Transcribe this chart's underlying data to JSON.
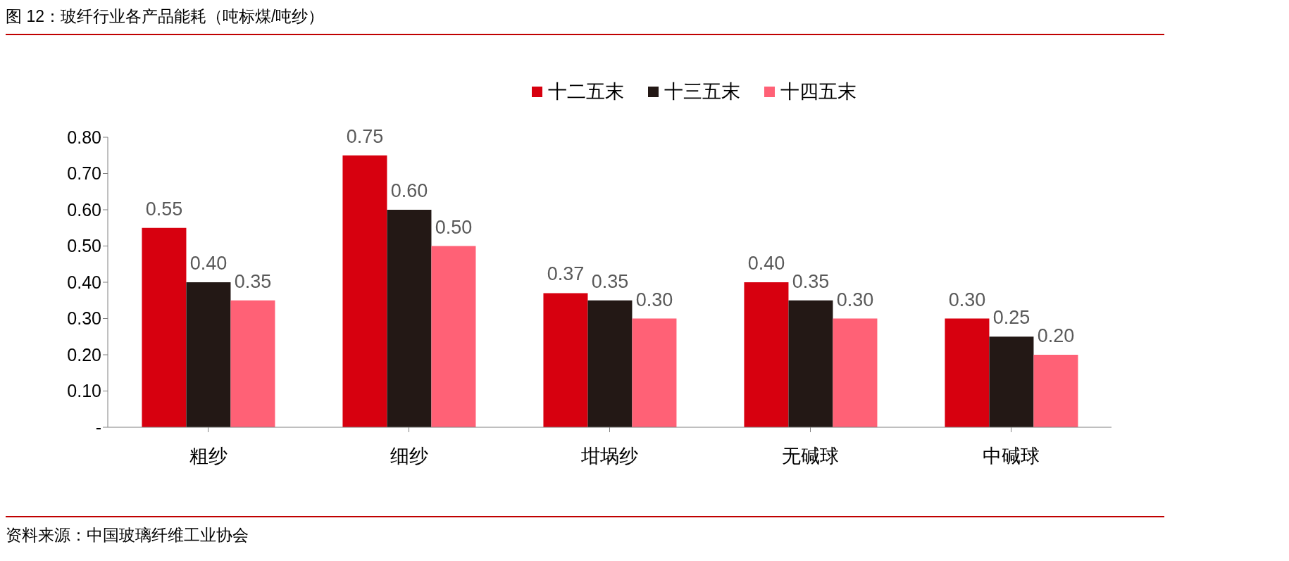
{
  "chart_data": {
    "type": "bar",
    "title": "图 12：玻纤行业各产品能耗（吨标煤/吨纱）",
    "categories": [
      "粗纱",
      "细纱",
      "坩埚纱",
      "无碱球",
      "中碱球"
    ],
    "series": [
      {
        "name": "十二五末",
        "color": "#d7000f",
        "values": [
          0.55,
          0.75,
          0.37,
          0.4,
          0.3
        ],
        "value_labels": [
          "0.55",
          "0.75",
          "0.37",
          "0.40",
          "0.30"
        ]
      },
      {
        "name": "十三五末",
        "color": "#231815",
        "values": [
          0.4,
          0.6,
          0.35,
          0.35,
          0.25
        ],
        "value_labels": [
          "0.40",
          "0.60",
          "0.35",
          "0.35",
          "0.25"
        ]
      },
      {
        "name": "十四五末",
        "color": "#ff6176",
        "values": [
          0.35,
          0.5,
          0.3,
          0.3,
          0.2
        ],
        "value_labels": [
          "0.35",
          "0.50",
          "0.30",
          "0.30",
          "0.20"
        ]
      }
    ],
    "ylim": [
      0,
      0.8
    ],
    "yticks": [
      {
        "value": 0,
        "label": "-"
      },
      {
        "value": 0.1,
        "label": "0.10"
      },
      {
        "value": 0.2,
        "label": "0.20"
      },
      {
        "value": 0.3,
        "label": "0.30"
      },
      {
        "value": 0.4,
        "label": "0.40"
      },
      {
        "value": 0.5,
        "label": "0.50"
      },
      {
        "value": 0.6,
        "label": "0.60"
      },
      {
        "value": 0.7,
        "label": "0.70"
      },
      {
        "value": 0.8,
        "label": "0.80"
      }
    ],
    "grid": false,
    "legend": "top",
    "annotations": [
      "资料来源：中国玻璃纤维工业协会"
    ]
  }
}
